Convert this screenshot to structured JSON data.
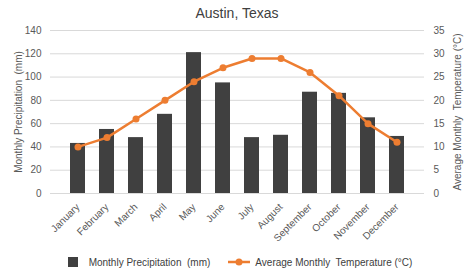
{
  "chart_data": {
    "type": "bar",
    "title": "Austin, Texas",
    "categories": [
      "January",
      "February",
      "March",
      "April",
      "May",
      "June",
      "July",
      "August",
      "September",
      "October",
      "November",
      "December"
    ],
    "series": [
      {
        "name": "Monthly Precipitation  (mm)",
        "type": "bar",
        "color": "#404040",
        "values": [
          43,
          55,
          48,
          68,
          121,
          95,
          48,
          50,
          87,
          86,
          65,
          49
        ]
      },
      {
        "name": "Average Monthly  Temperature (°C)",
        "type": "line",
        "color": "#ed7d31",
        "marker": "circle",
        "axis": "y2",
        "values": [
          10,
          12,
          16,
          20,
          24,
          27,
          29,
          29,
          26,
          21,
          15,
          11
        ]
      }
    ],
    "ylabel": "Monthly Precipitation  (mm)",
    "y2label": "Average Monthly  Temperature (°C)",
    "ylim": [
      0,
      140
    ],
    "yticks": [
      0,
      20,
      40,
      60,
      80,
      100,
      120,
      140
    ],
    "y2lim": [
      0,
      35
    ],
    "y2ticks": [
      0,
      5,
      10,
      15,
      20,
      25,
      30,
      35
    ],
    "grid": true,
    "legend": "bottom"
  }
}
